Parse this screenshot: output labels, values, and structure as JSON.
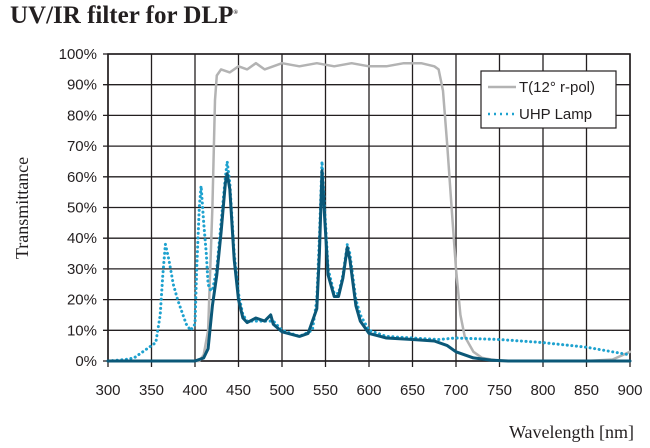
{
  "chart_data": {
    "type": "line",
    "title": "UV/IR filter for DLP",
    "title_mark": "®",
    "xlabel": "Wavelength [nm]",
    "ylabel": "Transmittance",
    "xlim": [
      300,
      900
    ],
    "ylim": [
      0,
      100
    ],
    "xticks": [
      300,
      350,
      400,
      450,
      500,
      550,
      600,
      650,
      700,
      750,
      800,
      850,
      900
    ],
    "yticks": [
      "0%",
      "10%",
      "20%",
      "30%",
      "40%",
      "50%",
      "60%",
      "70%",
      "80%",
      "90%",
      "100%"
    ],
    "grid": true,
    "legend_position": "top-right",
    "series": [
      {
        "name": "T(12° r-pol)",
        "color": "#b3b3b3",
        "style": "solid",
        "x": [
          300,
          405,
          410,
          415,
          420,
          423,
          425,
          430,
          440,
          450,
          460,
          470,
          480,
          490,
          500,
          520,
          540,
          560,
          580,
          600,
          620,
          640,
          660,
          675,
          680,
          685,
          690,
          695,
          700,
          705,
          710,
          720,
          730,
          750,
          850,
          880,
          900
        ],
        "y": [
          0,
          0,
          2,
          10,
          50,
          85,
          93,
          95,
          94,
          96,
          95,
          97,
          95,
          96,
          97,
          96,
          97,
          96,
          97,
          96,
          96,
          97,
          97,
          96,
          95,
          88,
          70,
          50,
          30,
          15,
          8,
          3,
          1,
          0,
          0,
          0.5,
          3
        ]
      },
      {
        "name": "UHP Lamp",
        "color": "#1ea2cf",
        "style": "dotted",
        "x": [
          300,
          320,
          330,
          340,
          350,
          355,
          360,
          363,
          366,
          370,
          375,
          380,
          385,
          390,
          395,
          400,
          402,
          405,
          407,
          410,
          413,
          415,
          418,
          420,
          425,
          430,
          435,
          437,
          440,
          445,
          450,
          455,
          460,
          470,
          480,
          490,
          500,
          520,
          535,
          540,
          543,
          546,
          549,
          553,
          560,
          565,
          570,
          575,
          578,
          585,
          590,
          600,
          620,
          650,
          680,
          700,
          750,
          800,
          850,
          900
        ],
        "y": [
          0,
          0.5,
          1,
          3,
          5,
          6,
          15,
          28,
          38,
          33,
          25,
          20,
          16,
          12,
          10,
          12,
          30,
          50,
          57,
          45,
          35,
          25,
          23,
          23,
          30,
          45,
          60,
          65,
          58,
          35,
          22,
          15,
          13,
          13,
          13,
          13,
          10,
          8,
          10,
          20,
          40,
          65,
          50,
          30,
          22,
          22,
          28,
          38,
          35,
          20,
          15,
          10,
          8,
          7.5,
          7,
          7.5,
          7,
          6,
          4.5,
          2
        ]
      },
      {
        "color": "#0b5878",
        "style": "solid",
        "x": [
          300,
          400,
          410,
          415,
          420,
          425,
          430,
          435,
          437,
          440,
          445,
          450,
          455,
          460,
          470,
          480,
          487,
          490,
          500,
          520,
          530,
          540,
          543,
          546,
          549,
          553,
          560,
          565,
          570,
          575,
          578,
          585,
          590,
          600,
          620,
          650,
          675,
          690,
          700,
          720,
          740,
          760,
          900
        ],
        "y": [
          0,
          0,
          1,
          4,
          18,
          28,
          42,
          58,
          61,
          56,
          33,
          20,
          14,
          12.5,
          14,
          13,
          15,
          12,
          9.5,
          8,
          9,
          17,
          35,
          62,
          47,
          28,
          21,
          21,
          27,
          37,
          33,
          18,
          13,
          9,
          7.5,
          7,
          6.5,
          5,
          3,
          1,
          0.3,
          0,
          0
        ]
      }
    ]
  }
}
